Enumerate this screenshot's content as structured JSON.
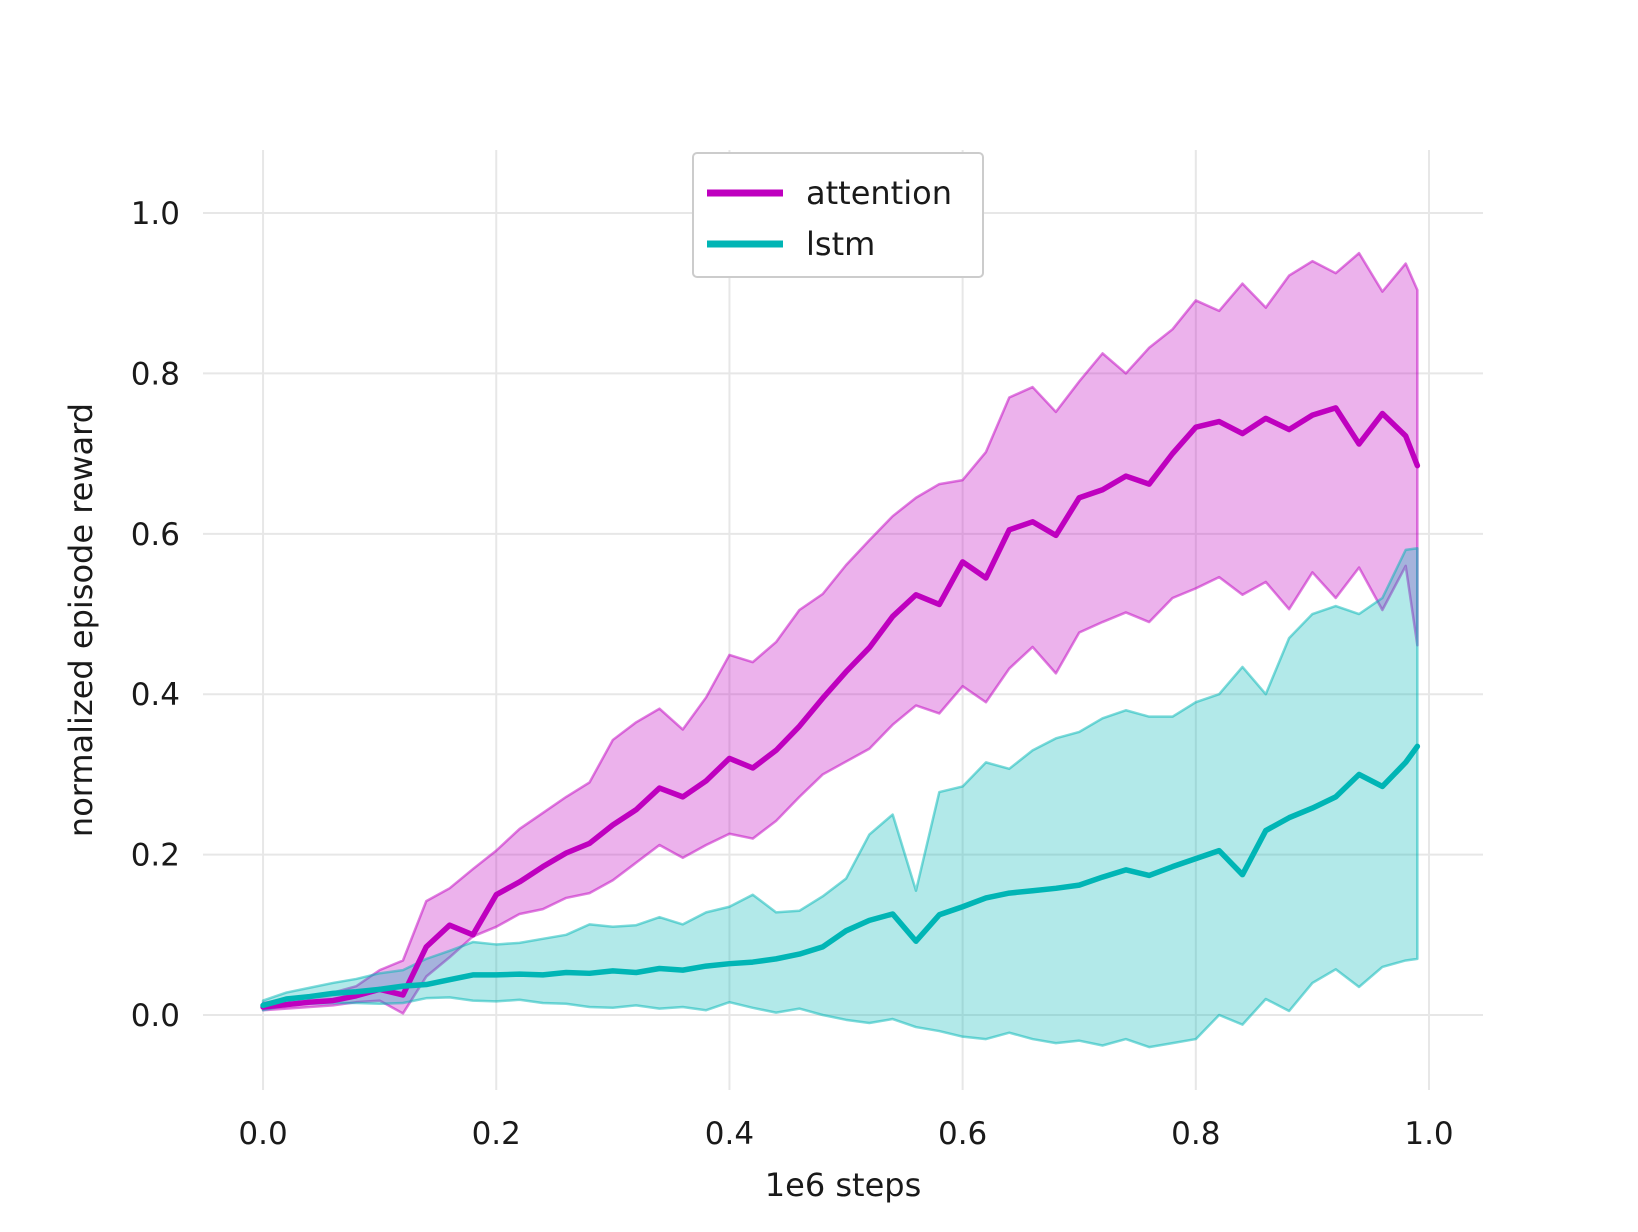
{
  "chart_data": {
    "type": "line",
    "title": "",
    "xlabel": "1e6 steps",
    "ylabel": "normalized episode reward",
    "grid": true,
    "legend": {
      "position": "upper center",
      "entries": [
        "attention",
        "lstm"
      ]
    },
    "xlim": [
      -0.0515,
      1.0463
    ],
    "ylim": [
      -0.0935,
      1.0786
    ],
    "xticks": {
      "values": [
        0.0,
        0.2,
        0.4,
        0.6,
        0.8,
        1.0
      ],
      "labels": [
        "0.0",
        "0.2",
        "0.4",
        "0.6",
        "0.8",
        "1.0"
      ]
    },
    "yticks": {
      "values": [
        0.0,
        0.2,
        0.4,
        0.6,
        0.8,
        1.0
      ],
      "labels": [
        "0.0",
        "0.2",
        "0.4",
        "0.6",
        "0.8",
        "1.0"
      ]
    },
    "colors": {
      "grid": "#e7e7e7",
      "text": "#1a1a1a",
      "legend_border": "#cccccc",
      "background": "#ffffff"
    },
    "x": [
      0.0,
      0.02,
      0.04,
      0.06,
      0.08,
      0.1,
      0.12,
      0.14,
      0.16,
      0.18,
      0.2,
      0.22,
      0.24,
      0.26,
      0.28,
      0.3,
      0.32,
      0.34,
      0.36,
      0.38,
      0.4,
      0.42,
      0.44,
      0.46,
      0.48,
      0.5,
      0.52,
      0.54,
      0.56,
      0.58,
      0.6,
      0.62,
      0.64,
      0.66,
      0.68,
      0.7,
      0.72,
      0.74,
      0.76,
      0.78,
      0.8,
      0.82,
      0.84,
      0.86,
      0.88,
      0.9,
      0.92,
      0.94,
      0.96,
      0.98,
      0.99
    ],
    "series": [
      {
        "name": "attention",
        "color": "#bf00bf",
        "band_fill_alpha": 0.3,
        "band_edge_alpha": 0.5,
        "values": [
          0.01,
          0.013,
          0.016,
          0.018,
          0.024,
          0.032,
          0.025,
          0.085,
          0.112,
          0.1,
          0.15,
          0.166,
          0.185,
          0.202,
          0.214,
          0.237,
          0.256,
          0.283,
          0.272,
          0.292,
          0.32,
          0.308,
          0.33,
          0.36,
          0.395,
          0.428,
          0.458,
          0.497,
          0.524,
          0.512,
          0.565,
          0.545,
          0.605,
          0.615,
          0.598,
          0.645,
          0.655,
          0.672,
          0.662,
          0.7,
          0.733,
          0.74,
          0.725,
          0.744,
          0.73,
          0.748,
          0.757,
          0.712,
          0.75,
          0.722,
          0.685
        ],
        "band_upper": [
          0.015,
          0.02,
          0.024,
          0.028,
          0.036,
          0.056,
          0.068,
          0.142,
          0.158,
          0.182,
          0.205,
          0.232,
          0.252,
          0.272,
          0.29,
          0.343,
          0.365,
          0.382,
          0.356,
          0.396,
          0.449,
          0.44,
          0.465,
          0.505,
          0.525,
          0.561,
          0.592,
          0.622,
          0.645,
          0.662,
          0.667,
          0.702,
          0.77,
          0.783,
          0.752,
          0.79,
          0.825,
          0.8,
          0.832,
          0.855,
          0.891,
          0.878,
          0.912,
          0.882,
          0.922,
          0.94,
          0.925,
          0.95,
          0.902,
          0.937,
          0.904
        ],
        "band_lower": [
          0.006,
          0.008,
          0.01,
          0.012,
          0.016,
          0.018,
          0.002,
          0.048,
          0.072,
          0.098,
          0.11,
          0.126,
          0.132,
          0.146,
          0.152,
          0.168,
          0.19,
          0.212,
          0.196,
          0.212,
          0.226,
          0.22,
          0.242,
          0.272,
          0.3,
          0.316,
          0.332,
          0.362,
          0.386,
          0.376,
          0.41,
          0.39,
          0.432,
          0.459,
          0.426,
          0.477,
          0.49,
          0.502,
          0.49,
          0.52,
          0.532,
          0.546,
          0.524,
          0.54,
          0.506,
          0.552,
          0.52,
          0.558,
          0.505,
          0.56,
          0.461
        ]
      },
      {
        "name": "lstm",
        "color": "#00b5b5",
        "band_fill_alpha": 0.3,
        "band_edge_alpha": 0.5,
        "values": [
          0.012,
          0.02,
          0.023,
          0.027,
          0.029,
          0.032,
          0.036,
          0.038,
          0.044,
          0.05,
          0.05,
          0.051,
          0.05,
          0.053,
          0.052,
          0.055,
          0.053,
          0.058,
          0.056,
          0.061,
          0.064,
          0.066,
          0.07,
          0.076,
          0.085,
          0.105,
          0.118,
          0.126,
          0.092,
          0.125,
          0.135,
          0.146,
          0.152,
          0.155,
          0.158,
          0.162,
          0.172,
          0.181,
          0.174,
          0.185,
          0.195,
          0.205,
          0.175,
          0.23,
          0.246,
          0.258,
          0.272,
          0.3,
          0.285,
          0.315,
          0.335
        ],
        "band_upper": [
          0.018,
          0.028,
          0.034,
          0.04,
          0.045,
          0.052,
          0.056,
          0.07,
          0.08,
          0.091,
          0.088,
          0.09,
          0.095,
          0.1,
          0.113,
          0.11,
          0.112,
          0.122,
          0.113,
          0.128,
          0.135,
          0.15,
          0.128,
          0.13,
          0.148,
          0.17,
          0.225,
          0.25,
          0.155,
          0.278,
          0.285,
          0.315,
          0.307,
          0.33,
          0.345,
          0.353,
          0.37,
          0.38,
          0.372,
          0.372,
          0.39,
          0.4,
          0.434,
          0.4,
          0.47,
          0.5,
          0.51,
          0.5,
          0.52,
          0.58,
          0.582
        ],
        "band_lower": [
          0.006,
          0.012,
          0.014,
          0.015,
          0.015,
          0.014,
          0.015,
          0.021,
          0.022,
          0.018,
          0.017,
          0.019,
          0.015,
          0.014,
          0.01,
          0.009,
          0.012,
          0.008,
          0.01,
          0.006,
          0.016,
          0.009,
          0.003,
          0.008,
          0.0,
          -0.006,
          -0.01,
          -0.005,
          -0.015,
          -0.02,
          -0.027,
          -0.03,
          -0.022,
          -0.03,
          -0.035,
          -0.032,
          -0.038,
          -0.03,
          -0.04,
          -0.035,
          -0.03,
          0.0,
          -0.012,
          0.02,
          0.005,
          0.04,
          0.057,
          0.035,
          0.06,
          0.068,
          0.07
        ]
      }
    ]
  }
}
